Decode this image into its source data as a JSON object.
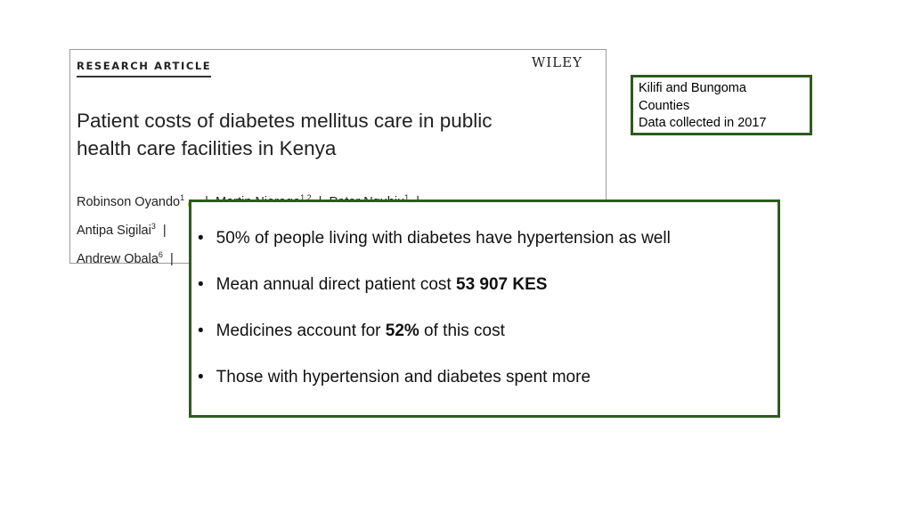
{
  "paper": {
    "label": "RESEARCH ARTICLE",
    "publisher": "WILEY",
    "title_line1": "Patient costs of diabetes mellitus care in public",
    "title_line2": "health care facilities in Kenya",
    "authors": [
      {
        "name": "Robinson Oyando",
        "sup": "1"
      },
      {
        "name": "Martin Njoroge",
        "sup": "1,2"
      },
      {
        "name": "Peter Nguhiu",
        "sup": "1"
      },
      {
        "name": "Antipa Sigilai",
        "sup": "3"
      },
      {
        "name": "Andrew Obala",
        "sup": "6"
      }
    ],
    "orcid_icon": "orcid-icon"
  },
  "note": {
    "line1": "Kilifi and Bungoma",
    "line2": "Counties",
    "line3": "Data collected in 2017"
  },
  "bullets": [
    {
      "text": "50% of people living with diabetes have hypertension as well"
    },
    {
      "pre": "Mean annual direct patient cost ",
      "bold": "53 907 KES",
      "post": ""
    },
    {
      "pre": "Medicines account for ",
      "bold": "52%",
      "post": " of this cost"
    },
    {
      "text": "Those with hypertension and diabetes spent more"
    }
  ],
  "colors": {
    "box_border": "#2e5b1e"
  }
}
